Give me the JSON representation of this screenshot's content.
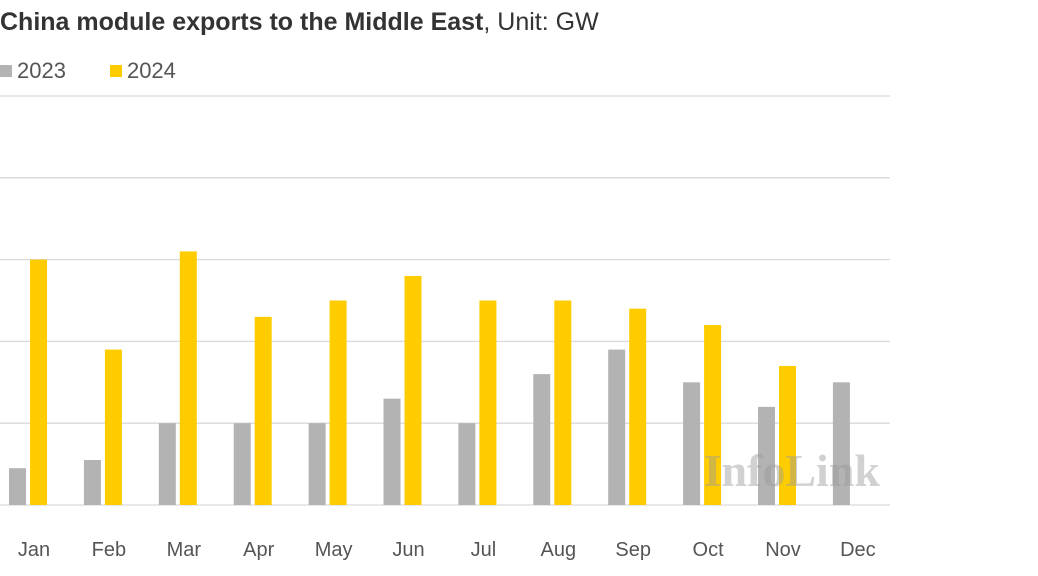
{
  "chart_data": {
    "type": "bar",
    "title": "China module exports to the Middle East",
    "subtitle": ", Unit: GW",
    "categories": [
      "Jan",
      "Feb",
      "Mar",
      "Apr",
      "May",
      "Jun",
      "Jul",
      "Aug",
      "Sep",
      "Oct",
      "Nov",
      "Dec"
    ],
    "series": [
      {
        "name": "2023",
        "color": "#b3b3b3",
        "values": [
          0.9,
          1.1,
          2.0,
          2.0,
          2.0,
          2.6,
          2.0,
          3.2,
          3.8,
          3.0,
          2.4,
          3.0
        ]
      },
      {
        "name": "2024",
        "color": "#ffcc00",
        "values": [
          6.0,
          3.8,
          6.2,
          4.6,
          5.0,
          5.6,
          5.0,
          5.0,
          4.8,
          4.4,
          3.4,
          null
        ]
      }
    ],
    "ylim": [
      0,
      10
    ],
    "grid": true,
    "legend_position": "top-left",
    "watermark": "InfoLink"
  }
}
